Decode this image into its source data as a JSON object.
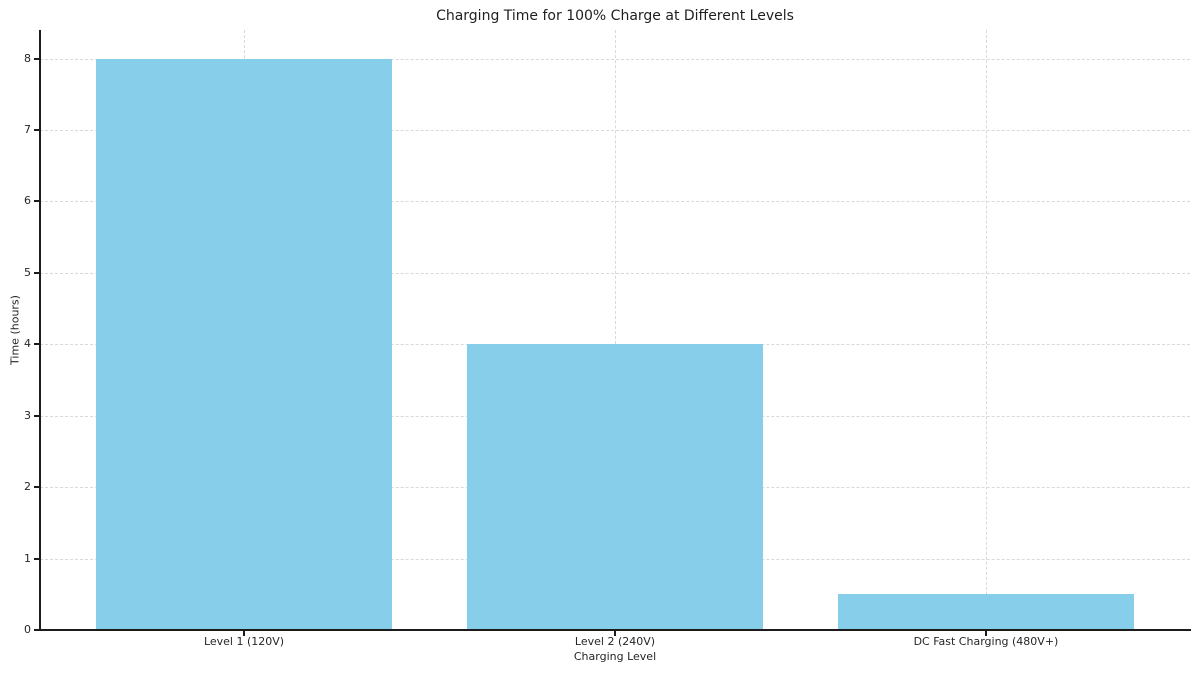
{
  "chart_data": {
    "type": "bar",
    "title": "Charging Time for 100% Charge at Different Levels",
    "xlabel": "Charging Level",
    "ylabel": "Time (hours)",
    "categories": [
      "Level 1 (120V)",
      "Level 2 (240V)",
      "DC Fast Charging (480V+)"
    ],
    "values": [
      8,
      4,
      0.5
    ],
    "yticks": [
      0,
      1,
      2,
      3,
      4,
      5,
      6,
      7,
      8
    ],
    "ylim": [
      0,
      8.4
    ],
    "bar_color": "#87CEEB",
    "grid": true,
    "grid_color": "#d9d9d9",
    "grid_style": "dashed",
    "axis_color": "#1c1c1c",
    "text_color": "#262626",
    "background_color": "#ffffff",
    "legend": null
  }
}
